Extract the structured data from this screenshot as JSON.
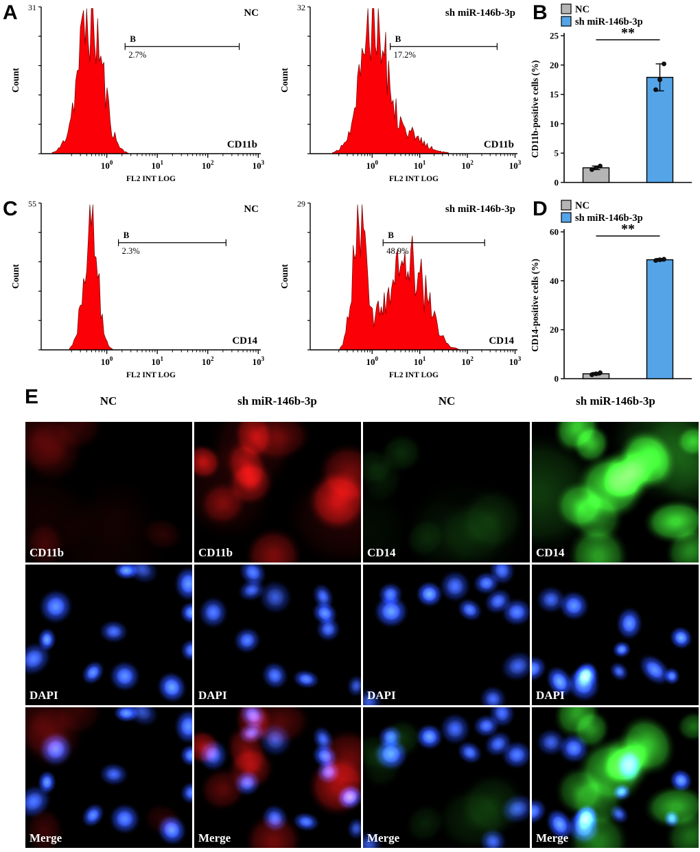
{
  "panel_labels": {
    "a": "A",
    "b": "B",
    "c": "C",
    "d": "D",
    "e": "E"
  },
  "chart_data": [
    {
      "type": "area",
      "chart_kind": "flow-histogram",
      "panel": "A",
      "condition": "NC",
      "marker": "CD11b",
      "xlabel": "FL2 INT LOG",
      "ylabel": "Count",
      "x_scale": "log10",
      "x_decades": [
        0,
        1,
        2,
        3
      ],
      "y_top_count": "31",
      "gate": {
        "name": "B",
        "percent_label": "2.7%",
        "percent": 2.7,
        "x_from": 2.3,
        "x_to": 420
      },
      "peaks": [
        {
          "center_log": -0.33,
          "sigma_log": 0.24,
          "height": 1.0
        }
      ],
      "fill_color": "#fb0007",
      "seed": 11
    },
    {
      "type": "area",
      "chart_kind": "flow-histogram",
      "panel": "A",
      "condition": "sh miR-146b-3p",
      "marker": "CD11b",
      "xlabel": "FL2 INT LOG",
      "ylabel": "Count",
      "x_scale": "log10",
      "x_decades": [
        0,
        1,
        2,
        3
      ],
      "y_top_count": "32",
      "gate": {
        "name": "B",
        "percent_label": "17.2%",
        "percent": 17.2,
        "x_from": 2.4,
        "x_to": 420
      },
      "peaks": [
        {
          "center_log": 0.0,
          "sigma_log": 0.26,
          "height": 1.0
        },
        {
          "center_log": 0.55,
          "sigma_log": 0.4,
          "height": 0.18
        }
      ],
      "fill_color": "#fb0007",
      "seed": 12
    },
    {
      "type": "bar",
      "panel": "B",
      "categories": [
        "NC",
        "sh miR-146b-3p"
      ],
      "values": [
        2.5,
        17.9
      ],
      "errors": [
        0.3,
        2.3
      ],
      "points": [
        [
          2.2,
          2.5,
          2.8
        ],
        [
          15.8,
          17.5,
          20.2
        ]
      ],
      "ylabel": "CD11b-positive cells (%)",
      "ylim": [
        0,
        25
      ],
      "yticks": [
        0,
        5,
        10,
        15,
        20,
        25
      ],
      "bar_colors": [
        "#b5b5b5",
        "#55a4e8"
      ],
      "legend": [
        {
          "label": "NC",
          "color": "#b5b5b5"
        },
        {
          "label": "sh miR-146b-3p",
          "color": "#55a4e8"
        }
      ],
      "significance": "**"
    },
    {
      "type": "area",
      "chart_kind": "flow-histogram",
      "panel": "C",
      "condition": "NC",
      "marker": "CD14",
      "xlabel": "FL2 INT LOG",
      "ylabel": "Count",
      "x_scale": "log10",
      "x_decades": [
        0,
        1,
        2,
        3
      ],
      "y_top_count": "55",
      "gate": {
        "name": "B",
        "percent_label": "2.3%",
        "percent": 2.3,
        "x_from": 1.7,
        "x_to": 230
      },
      "peaks": [
        {
          "center_log": -0.32,
          "sigma_log": 0.14,
          "height": 1.0
        }
      ],
      "fill_color": "#fb0007",
      "seed": 13
    },
    {
      "type": "area",
      "chart_kind": "flow-histogram",
      "panel": "C",
      "condition": "sh miR-146b-3p",
      "marker": "CD14",
      "xlabel": "FL2 INT LOG",
      "ylabel": "Count",
      "x_scale": "log10",
      "x_decades": [
        0,
        1,
        2,
        3
      ],
      "y_top_count": "29",
      "gate": {
        "name": "B",
        "percent_label": "48.9%",
        "percent": 48.9,
        "x_from": 1.7,
        "x_to": 230
      },
      "peaks": [
        {
          "center_log": -0.28,
          "sigma_log": 0.13,
          "height": 1.0
        },
        {
          "center_log": 0.45,
          "sigma_log": 0.35,
          "height": 0.42
        },
        {
          "center_log": 0.95,
          "sigma_log": 0.3,
          "height": 0.4
        }
      ],
      "fill_color": "#fb0007",
      "seed": 14
    },
    {
      "type": "bar",
      "panel": "D",
      "categories": [
        "NC",
        "sh miR-146b-3p"
      ],
      "values": [
        2.0,
        48.6
      ],
      "errors": [
        0.5,
        0.5
      ],
      "points": [
        [
          1.6,
          2.0,
          2.4
        ],
        [
          48.3,
          48.6,
          48.8
        ]
      ],
      "ylabel": "CD14-positive cells (%)",
      "ylim": [
        0,
        60
      ],
      "yticks": [
        0,
        20,
        40,
        60
      ],
      "bar_colors": [
        "#b5b5b5",
        "#55a4e8"
      ],
      "legend": [
        {
          "label": "NC",
          "color": "#b5b5b5"
        },
        {
          "label": "sh miR-146b-3p",
          "color": "#55a4e8"
        }
      ],
      "significance": "**"
    }
  ],
  "microscopy": {
    "panel": "E",
    "column_headers": [
      "NC",
      "sh miR-146b-3p",
      "NC",
      "sh miR-146b-3p"
    ],
    "cells": [
      {
        "label": "CD11b",
        "condition": "NC",
        "stain": "red",
        "intensity": 0.22,
        "blob_count": 5,
        "seed": 21
      },
      {
        "label": "CD11b",
        "condition": "sh miR-146b-3p",
        "stain": "red",
        "intensity": 0.62,
        "blob_count": 9,
        "seed": 22
      },
      {
        "label": "CD14",
        "condition": "NC",
        "stain": "green",
        "intensity": 0.16,
        "blob_count": 6,
        "seed": 23
      },
      {
        "label": "CD14",
        "condition": "sh miR-146b-3p",
        "stain": "green",
        "intensity": 0.9,
        "blob_count": 12,
        "seed": 24
      },
      {
        "label": "DAPI",
        "condition": "NC",
        "stain": "blue",
        "intensity": 0.92,
        "blob_count": 12,
        "seed": 31
      },
      {
        "label": "DAPI",
        "condition": "sh miR-146b-3p",
        "stain": "blue",
        "intensity": 0.92,
        "blob_count": 11,
        "seed": 32
      },
      {
        "label": "DAPI",
        "condition": "NC",
        "stain": "blue",
        "intensity": 0.92,
        "blob_count": 12,
        "seed": 33
      },
      {
        "label": "DAPI",
        "condition": "sh miR-146b-3p",
        "stain": "blue",
        "intensity": 0.92,
        "blob_count": 13,
        "seed": 34
      },
      {
        "label": "Merge",
        "condition": "NC",
        "stain": "merge",
        "overlay": "red",
        "intensity": 0.22,
        "blob_count": 5,
        "seed": 21,
        "nuclei_seed": 31
      },
      {
        "label": "Merge",
        "condition": "sh miR-146b-3p",
        "stain": "merge",
        "overlay": "red",
        "intensity": 0.55,
        "blob_count": 9,
        "seed": 22,
        "nuclei_seed": 32
      },
      {
        "label": "Merge",
        "condition": "NC",
        "stain": "merge",
        "overlay": "green",
        "intensity": 0.18,
        "blob_count": 6,
        "seed": 23,
        "nuclei_seed": 33
      },
      {
        "label": "Merge",
        "condition": "sh miR-146b-3p",
        "stain": "merge",
        "overlay": "green",
        "intensity": 0.7,
        "blob_count": 12,
        "seed": 24,
        "nuclei_seed": 34
      }
    ]
  }
}
